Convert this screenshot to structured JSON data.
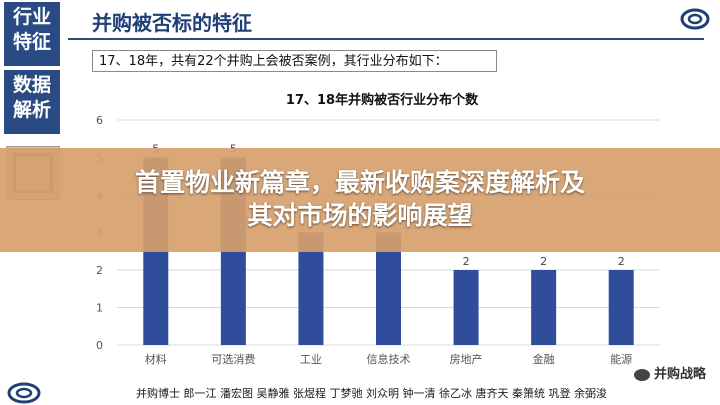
{
  "sidebar": {
    "block1": [
      "行业",
      "特征"
    ],
    "block2": [
      "数据",
      "解析"
    ]
  },
  "header": {
    "title": "并购被否标的特征"
  },
  "note": "17、18年，共有22个并购上会被否案例，其行业分布如下：",
  "overlay": {
    "line1": "首置物业新篇章，最新收购案深度解析及",
    "line2": "其对市场的影响展望"
  },
  "footer": {
    "names": "并购博士  郎一江  潘宏图  吴静雅  张煜程  丁梦驰  刘众明  钟一清  徐乙冰  唐齐天  秦箫统  巩登  余弼浚"
  },
  "watermark": "并购战略",
  "colors": {
    "bar": "#2f4d9a",
    "accent": "#2a4a83",
    "overlay": "#d6a06c"
  },
  "chart_data": {
    "type": "bar",
    "title": "17、18年并购被否行业分布个数",
    "categories": [
      "材料",
      "可选消费",
      "工业",
      "信息技术",
      "房地产",
      "金融",
      "能源"
    ],
    "values": [
      5,
      5,
      3,
      3,
      2,
      2,
      2
    ],
    "ylim": [
      0,
      6
    ],
    "yticks": [
      0,
      1,
      2,
      3,
      4,
      5,
      6
    ],
    "grid": true,
    "data_labels": true
  }
}
